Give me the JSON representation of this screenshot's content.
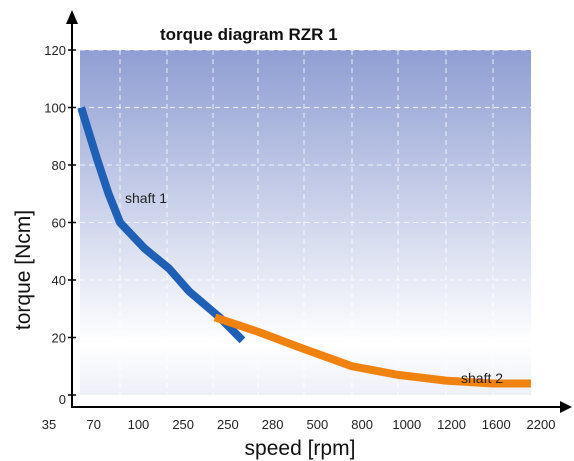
{
  "chart_data": {
    "type": "line",
    "title": "torque diagram RZR 1",
    "xlabel": "speed [rpm]",
    "ylabel": "torque [Ncm]",
    "ylim": [
      0,
      120
    ],
    "y_ticks": [
      "0",
      "20",
      "40",
      "60",
      "80",
      "100",
      "120"
    ],
    "x_ticks": [
      "35",
      "70",
      "100",
      "250",
      "250",
      "280",
      "500",
      "800",
      "1000",
      "1200",
      "1600",
      "2200"
    ],
    "grid": true,
    "background": {
      "top_color": "#8f9ed3",
      "bottom_color": "#ffffff"
    },
    "series": [
      {
        "name": "shaft 1",
        "color": "#1f5fb5",
        "points": [
          {
            "x": 36,
            "y": 100
          },
          {
            "x": 50,
            "y": 82
          },
          {
            "x": 60,
            "y": 70
          },
          {
            "x": 70,
            "y": 60
          },
          {
            "x": 85,
            "y": 51
          },
          {
            "x": 100,
            "y": 44
          },
          {
            "x": 140,
            "y": 36
          },
          {
            "x": 200,
            "y": 27
          },
          {
            "x": 245,
            "y": 19
          }
        ]
      },
      {
        "name": "shaft 2",
        "color": "#f0820f",
        "points": [
          {
            "x": 250,
            "y": 27
          },
          {
            "x": 280,
            "y": 22
          },
          {
            "x": 500,
            "y": 16
          },
          {
            "x": 800,
            "y": 10
          },
          {
            "x": 1000,
            "y": 7
          },
          {
            "x": 1200,
            "y": 5
          },
          {
            "x": 1600,
            "y": 4
          },
          {
            "x": 2200,
            "y": 4
          }
        ]
      }
    ]
  }
}
